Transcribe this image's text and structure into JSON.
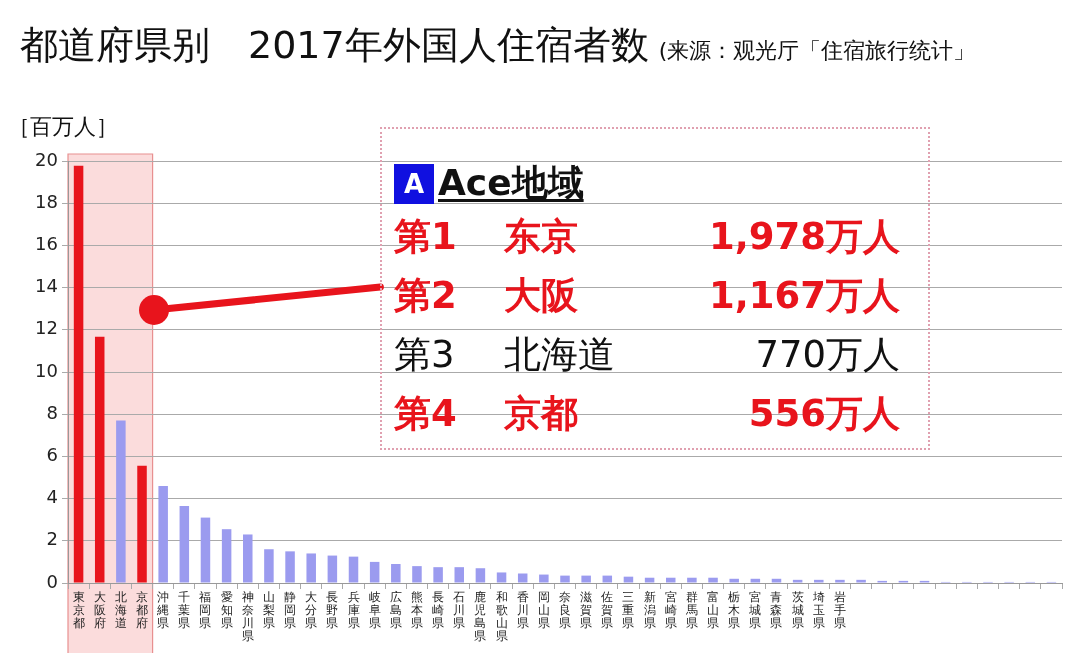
{
  "chart_data": {
    "type": "bar",
    "title": "都道府県别　2017年外国人住宿者数",
    "subtitle": "(来源：观光厅「住宿旅行统计」",
    "ylabel": "［百万人］",
    "categories": [
      "東京都",
      "大阪府",
      "北海道",
      "京都府",
      "沖縄県",
      "千葉県",
      "福岡県",
      "愛知県",
      "神奈川県",
      "山梨県",
      "静岡県",
      "大分県",
      "長野県",
      "兵庫県",
      "岐阜県",
      "広島県",
      "熊本県",
      "長崎県",
      "石川県",
      "鹿児島県",
      "和歌山県",
      "香川県",
      "岡山県",
      "奈良県",
      "滋賀県",
      "佐賀県",
      "三重県",
      "新潟県",
      "宮崎県",
      "群馬県",
      "富山県",
      "栃木県",
      "宮城県",
      "青森県",
      "茨城県",
      "埼玉県",
      "岩手県",
      null,
      null,
      null,
      null,
      null,
      null,
      null,
      null,
      null,
      null
    ],
    "values": [
      19.78,
      11.67,
      7.7,
      5.56,
      4.6,
      3.65,
      3.1,
      2.55,
      2.3,
      1.6,
      1.5,
      1.4,
      1.3,
      1.25,
      1.0,
      0.9,
      0.8,
      0.75,
      0.75,
      0.7,
      0.5,
      0.45,
      0.4,
      0.35,
      0.35,
      0.35,
      0.3,
      0.25,
      0.25,
      0.25,
      0.25,
      0.2,
      0.2,
      0.2,
      0.15,
      0.15,
      0.15,
      0.15,
      0.1,
      0.1,
      0.1,
      0.05,
      0.05,
      0.05,
      0.05,
      0.05,
      0.05
    ],
    "colors": [
      "#e8141c",
      "#e8141c",
      "#9b9bef",
      "#e8141c",
      "#9b9bef",
      "#9b9bef",
      "#9b9bef",
      "#9b9bef",
      "#9b9bef",
      "#9b9bef",
      "#9b9bef",
      "#9b9bef",
      "#9b9bef",
      "#9b9bef",
      "#9b9bef",
      "#9b9bef",
      "#9b9bef",
      "#9b9bef",
      "#9b9bef",
      "#9b9bef",
      "#9b9bef",
      "#9b9bef",
      "#9b9bef",
      "#9b9bef",
      "#9b9bef",
      "#9b9bef",
      "#9b9bef",
      "#9b9bef",
      "#9b9bef",
      "#9b9bef",
      "#9b9bef",
      "#9b9bef",
      "#9b9bef",
      "#9b9bef",
      "#9b9bef",
      "#9b9bef",
      "#9b9bef",
      "#9b9bef",
      "#9b9bef",
      "#9b9bef",
      "#9b9bef",
      "#9b9bef",
      "#9b9bef",
      "#9b9bef",
      "#9b9bef",
      "#9b9bef",
      "#9b9bef"
    ],
    "ylim": [
      0,
      20
    ],
    "yticks": [
      0,
      2,
      4,
      6,
      8,
      10,
      12,
      14,
      16,
      18,
      20
    ],
    "grid": "y",
    "legend": false,
    "bands": [
      {
        "axis": "x",
        "from": "東京都",
        "to": "京都府",
        "color": "#fbdcdc"
      }
    ],
    "annotations": [
      "A",
      "Ace地域",
      "第1",
      "东京",
      "1,978万人",
      "第2",
      "大阪",
      "1,167万人",
      "第3",
      "北海道",
      "770万人",
      "第4",
      "京都",
      "556万人"
    ]
  }
}
